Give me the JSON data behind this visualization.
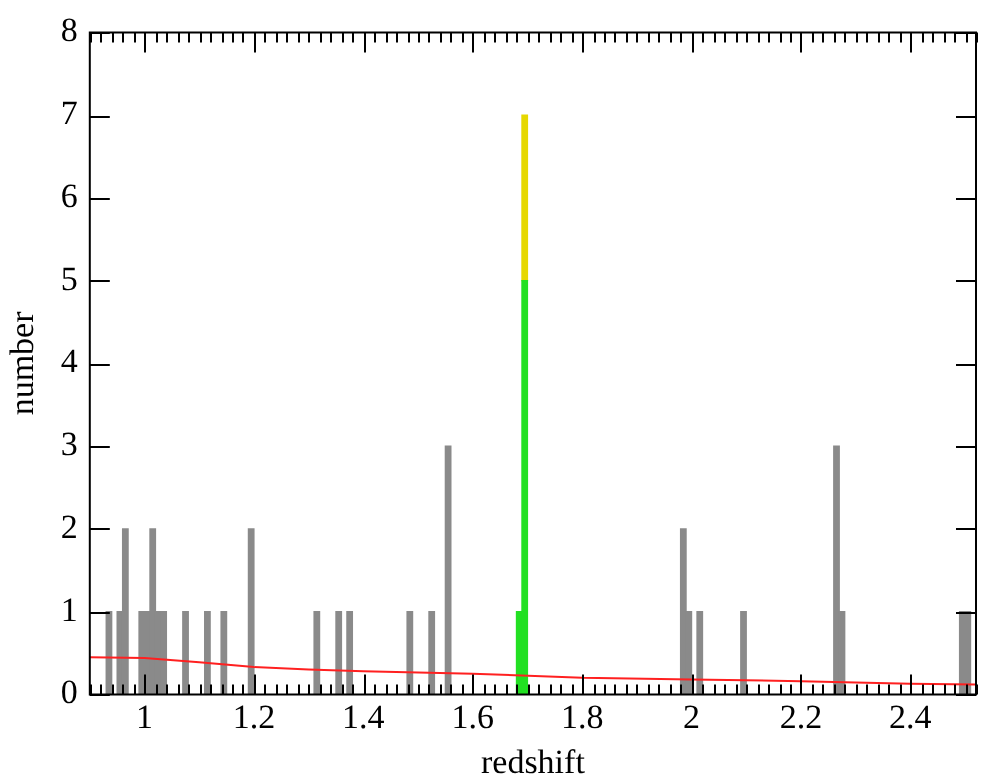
{
  "chart_data": {
    "type": "bar",
    "xlabel": "redshift",
    "ylabel": "number",
    "stacked": true,
    "grid": false,
    "legend": false,
    "series": [
      {
        "color": "#8a8a8a",
        "values": [
          1,
          1,
          2,
          1,
          1,
          2,
          1,
          1,
          1,
          1,
          1,
          2,
          1,
          1,
          1,
          1,
          1,
          3,
          null,
          null,
          2,
          1,
          1,
          1,
          3,
          1,
          1,
          1
        ]
      },
      {
        "color": "#22e022",
        "values": [
          null,
          null,
          null,
          null,
          null,
          null,
          null,
          null,
          null,
          null,
          null,
          null,
          null,
          null,
          null,
          null,
          null,
          null,
          1,
          5,
          null,
          null,
          null,
          null,
          null,
          null,
          null,
          null
        ]
      },
      {
        "color": "#e6d800",
        "values": [
          null,
          null,
          null,
          null,
          null,
          null,
          null,
          null,
          null,
          null,
          null,
          null,
          null,
          null,
          null,
          null,
          null,
          null,
          null,
          2,
          null,
          null,
          null,
          null,
          null,
          null,
          null,
          null
        ]
      },
      {
        "type": "line",
        "color": "#ff2020",
        "x": [
          0.9,
          1.0,
          1.1,
          1.2,
          1.3,
          1.4,
          1.6,
          1.8,
          2.0,
          2.2,
          2.4,
          2.52
        ],
        "values": [
          0.45,
          0.44,
          0.39,
          0.33,
          0.3,
          0.28,
          0.25,
          0.2,
          0.18,
          0.16,
          0.13,
          0.12
        ]
      }
    ],
    "x": [
      0.935,
      0.955,
      0.965,
      0.995,
      1.005,
      1.015,
      1.025,
      1.035,
      1.075,
      1.115,
      1.145,
      1.195,
      1.315,
      1.355,
      1.375,
      1.485,
      1.525,
      1.555,
      1.685,
      1.695,
      1.985,
      1.995,
      2.015,
      2.095,
      2.265,
      2.275,
      2.495,
      2.505
    ],
    "xlim": [
      0.9,
      2.52
    ],
    "ylim": [
      0,
      8
    ],
    "yticks": [
      0,
      1,
      2,
      3,
      4,
      5,
      6,
      7,
      8
    ],
    "xticks": [
      {
        "value": 0.9,
        "label": null
      },
      {
        "value": 0.92,
        "label": null
      },
      {
        "value": 0.94,
        "label": null
      },
      {
        "value": 0.96,
        "label": null
      },
      {
        "value": 0.98,
        "label": null
      },
      1,
      {
        "value": 1.02,
        "label": null
      },
      {
        "value": 1.04,
        "label": null
      },
      {
        "value": 1.06,
        "label": null
      },
      {
        "value": 1.08,
        "label": null
      },
      {
        "value": 1.1,
        "label": null
      },
      {
        "value": 1.12,
        "label": null
      },
      {
        "value": 1.14,
        "label": null
      },
      {
        "value": 1.16,
        "label": null
      },
      {
        "value": 1.18,
        "label": null
      },
      1.2,
      {
        "value": 1.22,
        "label": null
      },
      {
        "value": 1.24,
        "label": null
      },
      {
        "value": 1.26,
        "label": null
      },
      {
        "value": 1.28,
        "label": null
      },
      {
        "value": 1.3,
        "label": null
      },
      {
        "value": 1.32,
        "label": null
      },
      {
        "value": 1.34,
        "label": null
      },
      {
        "value": 1.36,
        "label": null
      },
      {
        "value": 1.38,
        "label": null
      },
      1.4,
      {
        "value": 1.42,
        "label": null
      },
      {
        "value": 1.44,
        "label": null
      },
      {
        "value": 1.46,
        "label": null
      },
      {
        "value": 1.48,
        "label": null
      },
      {
        "value": 1.5,
        "label": null
      },
      {
        "value": 1.52,
        "label": null
      },
      {
        "value": 1.54,
        "label": null
      },
      {
        "value": 1.56,
        "label": null
      },
      {
        "value": 1.58,
        "label": null
      },
      1.6,
      {
        "value": 1.62,
        "label": null
      },
      {
        "value": 1.64,
        "label": null
      },
      {
        "value": 1.66,
        "label": null
      },
      {
        "value": 1.68,
        "label": null
      },
      {
        "value": 1.7,
        "label": null
      },
      {
        "value": 1.72,
        "label": null
      },
      {
        "value": 1.74,
        "label": null
      },
      {
        "value": 1.76,
        "label": null
      },
      {
        "value": 1.78,
        "label": null
      },
      1.8,
      {
        "value": 1.82,
        "label": null
      },
      {
        "value": 1.84,
        "label": null
      },
      {
        "value": 1.86,
        "label": null
      },
      {
        "value": 1.88,
        "label": null
      },
      {
        "value": 1.9,
        "label": null
      },
      {
        "value": 1.92,
        "label": null
      },
      {
        "value": 1.94,
        "label": null
      },
      {
        "value": 1.96,
        "label": null
      },
      {
        "value": 1.98,
        "label": null
      },
      2,
      {
        "value": 2.02,
        "label": null
      },
      {
        "value": 2.04,
        "label": null
      },
      {
        "value": 2.06,
        "label": null
      },
      {
        "value": 2.08,
        "label": null
      },
      {
        "value": 2.1,
        "label": null
      },
      {
        "value": 2.12,
        "label": null
      },
      {
        "value": 2.14,
        "label": null
      },
      {
        "value": 2.16,
        "label": null
      },
      {
        "value": 2.18,
        "label": null
      },
      2.2,
      {
        "value": 2.22,
        "label": null
      },
      {
        "value": 2.24,
        "label": null
      },
      {
        "value": 2.26,
        "label": null
      },
      {
        "value": 2.28,
        "label": null
      },
      {
        "value": 2.3,
        "label": null
      },
      {
        "value": 2.32,
        "label": null
      },
      {
        "value": 2.34,
        "label": null
      },
      {
        "value": 2.36,
        "label": null
      },
      {
        "value": 2.38,
        "label": null
      },
      2.4,
      {
        "value": 2.42,
        "label": null
      },
      {
        "value": 2.44,
        "label": null
      },
      {
        "value": 2.46,
        "label": null
      },
      {
        "value": 2.48,
        "label": null
      },
      {
        "value": 2.5,
        "label": null
      },
      {
        "value": 2.52,
        "label": null
      }
    ]
  }
}
